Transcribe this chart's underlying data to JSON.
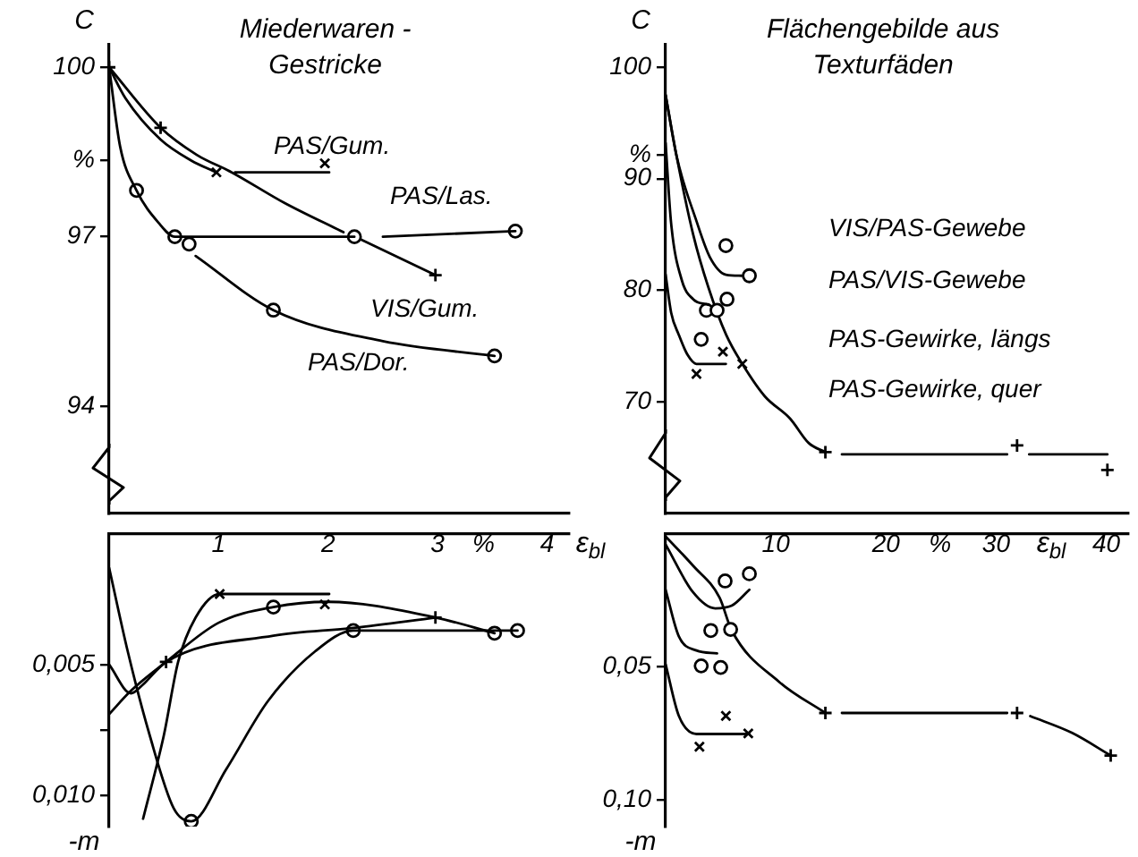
{
  "chart_data": [
    {
      "type": "line",
      "title": "Miederwaren -\nGestricke",
      "ylabel": "C",
      "xlabel": "ε$_{bl}$",
      "xlim": [
        0,
        4.2
      ],
      "ylim": [
        92.1,
        100.4
      ],
      "xticks": [
        1,
        2,
        3,
        {
          "value": 3.42,
          "label": "%"
        },
        4
      ],
      "yticks": [
        94,
        97,
        {
          "value": 98.35,
          "label": "%"
        },
        100
      ],
      "annotations": [
        "PAS/Gum.",
        "PAS/Las.",
        "VIS/Gum.",
        "PAS/Dor."
      ],
      "series": [
        {
          "color": "#000000",
          "marker": "none",
          "x": [
            0,
            0.15,
            0.47,
            0.75,
            0.98,
            1.07,
            1.15,
            2.01
          ],
          "values": [
            100,
            99.45,
            98.72,
            98.35,
            98.14,
            null,
            98.14,
            98.14
          ]
        },
        {
          "type": "scatter",
          "color": "#000000",
          "marker": "cross",
          "x": [
            0.98,
            1.97
          ],
          "values": [
            98.14,
            98.3
          ]
        },
        {
          "type": "line",
          "color": "#000000",
          "marker": "none",
          "x": [
            0,
            0.47,
            0.8,
            1.12,
            1.6,
            2.14,
            2.2,
            2.3,
            2.98
          ],
          "values": [
            100,
            98.93,
            98.45,
            98.14,
            97.6,
            97.08,
            null,
            96.95,
            96.32
          ]
        },
        {
          "type": "scatter",
          "color": "#000000",
          "marker": "plus",
          "x": [
            0,
            0.47,
            2.98
          ],
          "values": [
            100,
            98.93,
            96.32
          ]
        },
        {
          "color": "#000000",
          "marker": "none",
          "x": [
            0,
            0.1,
            0.25,
            0.45,
            0.6,
            1.2,
            2.24,
            2.35,
            2.5,
            3.71
          ],
          "values": [
            100,
            98.6,
            97.82,
            97.25,
            97,
            97,
            97,
            null,
            97,
            97.1
          ]
        },
        {
          "type": "scatter",
          "color": "#000000",
          "marker": "circle",
          "x": [
            0.6,
            2.24,
            3.71
          ],
          "values": [
            97,
            97,
            97.1
          ]
        },
        {
          "color": "#000000",
          "marker": "none",
          "x": [
            0.79,
            1.5,
            2.5,
            3.52
          ],
          "values": [
            96.66,
            95.7,
            95.15,
            94.89
          ]
        },
        {
          "type": "scatter",
          "color": "#000000",
          "marker": "circle",
          "x": [
            0.25,
            0.73,
            1.5,
            3.52
          ],
          "values": [
            97.82,
            96.87,
            95.7,
            94.89
          ]
        }
      ]
    },
    {
      "type": "line",
      "title": "Flächengebilde aus\nTexturfäden",
      "ylabel": "C",
      "xlabel": "ε$_{bl}$",
      "xlim": [
        0,
        42
      ],
      "ylim": [
        60,
        102
      ],
      "xticks": [
        10,
        20,
        {
          "value": 24.9,
          "label": "%"
        },
        30,
        40
      ],
      "yticks": [
        70,
        80,
        90,
        {
          "value": 92.1,
          "label": "%"
        },
        100
      ],
      "annotations": [
        "VIS/PAS-Gewebe",
        "PAS/VIS-Gewebe",
        "PAS-Gewirke, längs",
        "PAS-Gewirke, quer"
      ],
      "series": [
        {
          "type": "line",
          "color": "#000000",
          "marker": "none",
          "x": [
            0,
            1,
            2.8,
            4,
            5.47,
            6.9
          ],
          "values": [
            97.5,
            92,
            86.2,
            83,
            81.4,
            81.3
          ]
        },
        {
          "type": "scatter",
          "color": "#000000",
          "marker": "circle",
          "x": [
            5.47,
            5.57,
            7.6
          ],
          "values": [
            84,
            79.2,
            81.3
          ]
        },
        {
          "type": "line",
          "color": "#000000",
          "marker": "none",
          "x": [
            0,
            0.5,
            1.47,
            2.5,
            3.87
          ],
          "values": [
            93.2,
            86,
            80.9,
            79.2,
            78.7
          ]
        },
        {
          "type": "scatter",
          "color": "#000000",
          "marker": "circle",
          "x": [
            3.23,
            3.7,
            4.67
          ],
          "values": [
            75.6,
            78.2,
            78.2
          ]
        },
        {
          "type": "line",
          "color": "#000000",
          "marker": "none",
          "x": [
            0,
            0.5,
            1.2,
            2,
            2.8,
            5.47
          ],
          "values": [
            81.4,
            78,
            76,
            74.2,
            73.4,
            73.4
          ]
        },
        {
          "type": "scatter",
          "color": "#000000",
          "marker": "cross",
          "x": [
            2.8,
            5.2,
            6.96
          ],
          "values": [
            72.5,
            74.5,
            73.4
          ]
        },
        {
          "type": "line",
          "color": "#000000",
          "marker": "none",
          "x": [
            0,
            1,
            2.5,
            3.87,
            5.5,
            6.96,
            9,
            11.3,
            13,
            14.5,
            15.2,
            16,
            31,
            32,
            33,
            37,
            40.1
          ],
          "values": [
            97.5,
            92,
            85,
            80.3,
            76,
            73.4,
            70.5,
            68.5,
            66.3,
            65.5,
            null,
            65.3,
            65.3,
            null,
            65.3,
            65.3,
            65.3
          ]
        },
        {
          "type": "scatter",
          "color": "#000000",
          "marker": "plus",
          "x": [
            14.5,
            31.9,
            40.1
          ],
          "values": [
            65.5,
            66.1,
            63.9
          ]
        }
      ]
    },
    {
      "type": "line",
      "ylabel": "-m",
      "xlim": [
        0,
        4.2
      ],
      "ylim": [
        0.0112,
        0
      ],
      "tick_labels": "y",
      "yticks": [
        {
          "value": 0.005,
          "label": "0,005"
        },
        {
          "value": 0.0075,
          "label": null
        },
        {
          "value": 0.01,
          "label": "0,010"
        }
      ],
      "series": [
        {
          "type": "line",
          "color": "#000000",
          "marker": "none",
          "x": [
            0.31,
            0.5,
            0.63,
            0.79,
            1.01,
            1.1,
            2.01
          ],
          "values": [
            0.0109,
            0.0077,
            0.0049,
            0.0032,
            0.0023,
            0.0023,
            0.0023
          ]
        },
        {
          "type": "scatter",
          "color": "#000000",
          "marker": "cross",
          "x": [
            1.01,
            1.97
          ],
          "values": [
            0.0023,
            0.0027
          ]
        },
        {
          "type": "line",
          "color": "#000000",
          "marker": "none",
          "x": [
            0,
            0.2,
            0.3,
            0.52,
            1.5,
            2.23,
            2.98
          ],
          "values": [
            0.005,
            0.0061,
            0.0058,
            0.0049,
            0.0039,
            0.0036,
            0.0032
          ]
        },
        {
          "type": "scatter",
          "color": "#000000",
          "marker": "plus",
          "x": [
            0.52,
            2.98
          ],
          "values": [
            0.0049,
            0.0032
          ]
        },
        {
          "type": "line",
          "color": "#000000",
          "marker": "none",
          "x": [
            0,
            0.17,
            0.37,
            0.59,
            0.75,
            1.07,
            1.45,
            1.88,
            2.23,
            3.73
          ],
          "values": [
            0.0013,
            0.0045,
            0.0077,
            0.0105,
            0.011,
            0.009,
            0.0064,
            0.0045,
            0.0037,
            0.0037
          ]
        },
        {
          "type": "scatter",
          "color": "#000000",
          "marker": "circle",
          "x": [
            0.75,
            2.23,
            3.73
          ],
          "values": [
            0.011,
            0.0037,
            0.0037
          ]
        },
        {
          "type": "line",
          "color": "#000000",
          "marker": "none",
          "x": [
            0,
            0.2,
            0.52,
            1.0,
            1.5,
            2.0,
            2.98,
            3.52
          ],
          "values": [
            0.0069,
            0.006,
            0.0049,
            0.0034,
            0.0028,
            0.0026,
            0.0032,
            0.0038
          ]
        },
        {
          "type": "scatter",
          "color": "#000000",
          "marker": "circle",
          "x": [
            1.5,
            3.52
          ],
          "values": [
            0.0028,
            0.0038
          ]
        }
      ]
    },
    {
      "type": "line",
      "ylabel": "-m",
      "xlim": [
        0,
        42
      ],
      "ylim": [
        0.11,
        0
      ],
      "tick_labels": "y",
      "yticks": [
        {
          "value": 0.05,
          "label": "0,05"
        },
        {
          "value": 0.1,
          "label": "0,10"
        }
      ],
      "series": [
        {
          "type": "line",
          "color": "#000000",
          "marker": "none",
          "x": [
            0,
            2.5,
            4.5,
            6,
            7.6
          ],
          "values": [
            0.004,
            0.022,
            0.028,
            0.027,
            0.021
          ]
        },
        {
          "type": "scatter",
          "color": "#000000",
          "marker": "circle",
          "x": [
            5.4,
            5.9,
            7.6
          ],
          "values": [
            0.0177,
            0.0359,
            0.015
          ]
        },
        {
          "type": "line",
          "color": "#000000",
          "marker": "none",
          "x": [
            0,
            1.2,
            2.8,
            4.67
          ],
          "values": [
            0.021,
            0.0385,
            0.0438,
            0.0449
          ]
        },
        {
          "type": "scatter",
          "color": "#000000",
          "marker": "circle",
          "x": [
            3.23,
            4.1,
            5.0
          ],
          "values": [
            0.0496,
            0.0363,
            0.0502
          ]
        },
        {
          "type": "line",
          "color": "#000000",
          "marker": "none",
          "x": [
            0,
            1.2,
            2.8,
            7.6
          ],
          "values": [
            0.049,
            0.0684,
            0.0752,
            0.0752
          ]
        },
        {
          "type": "scatter",
          "color": "#000000",
          "marker": "cross",
          "x": [
            3.07,
            5.47,
            7.5
          ],
          "values": [
            0.08,
            0.0684,
            0.075
          ]
        },
        {
          "type": "line",
          "color": "#000000",
          "marker": "none",
          "x": [
            0,
            2.5,
            4.9,
            6.0,
            10.3,
            14.5,
            15.3,
            16,
            31,
            32.6,
            33.1,
            36.9,
            40.4
          ],
          "values": [
            0.001,
            0.012,
            0.024,
            0.0363,
            0.0556,
            0.0673,
            null,
            0.0673,
            0.0673,
            null,
            0.0685,
            0.0748,
            0.0833
          ]
        },
        {
          "type": "scatter",
          "color": "#000000",
          "marker": "plus",
          "x": [
            14.5,
            31.9,
            40.4
          ],
          "values": [
            0.0673,
            0.0673,
            0.0833
          ]
        }
      ]
    }
  ]
}
